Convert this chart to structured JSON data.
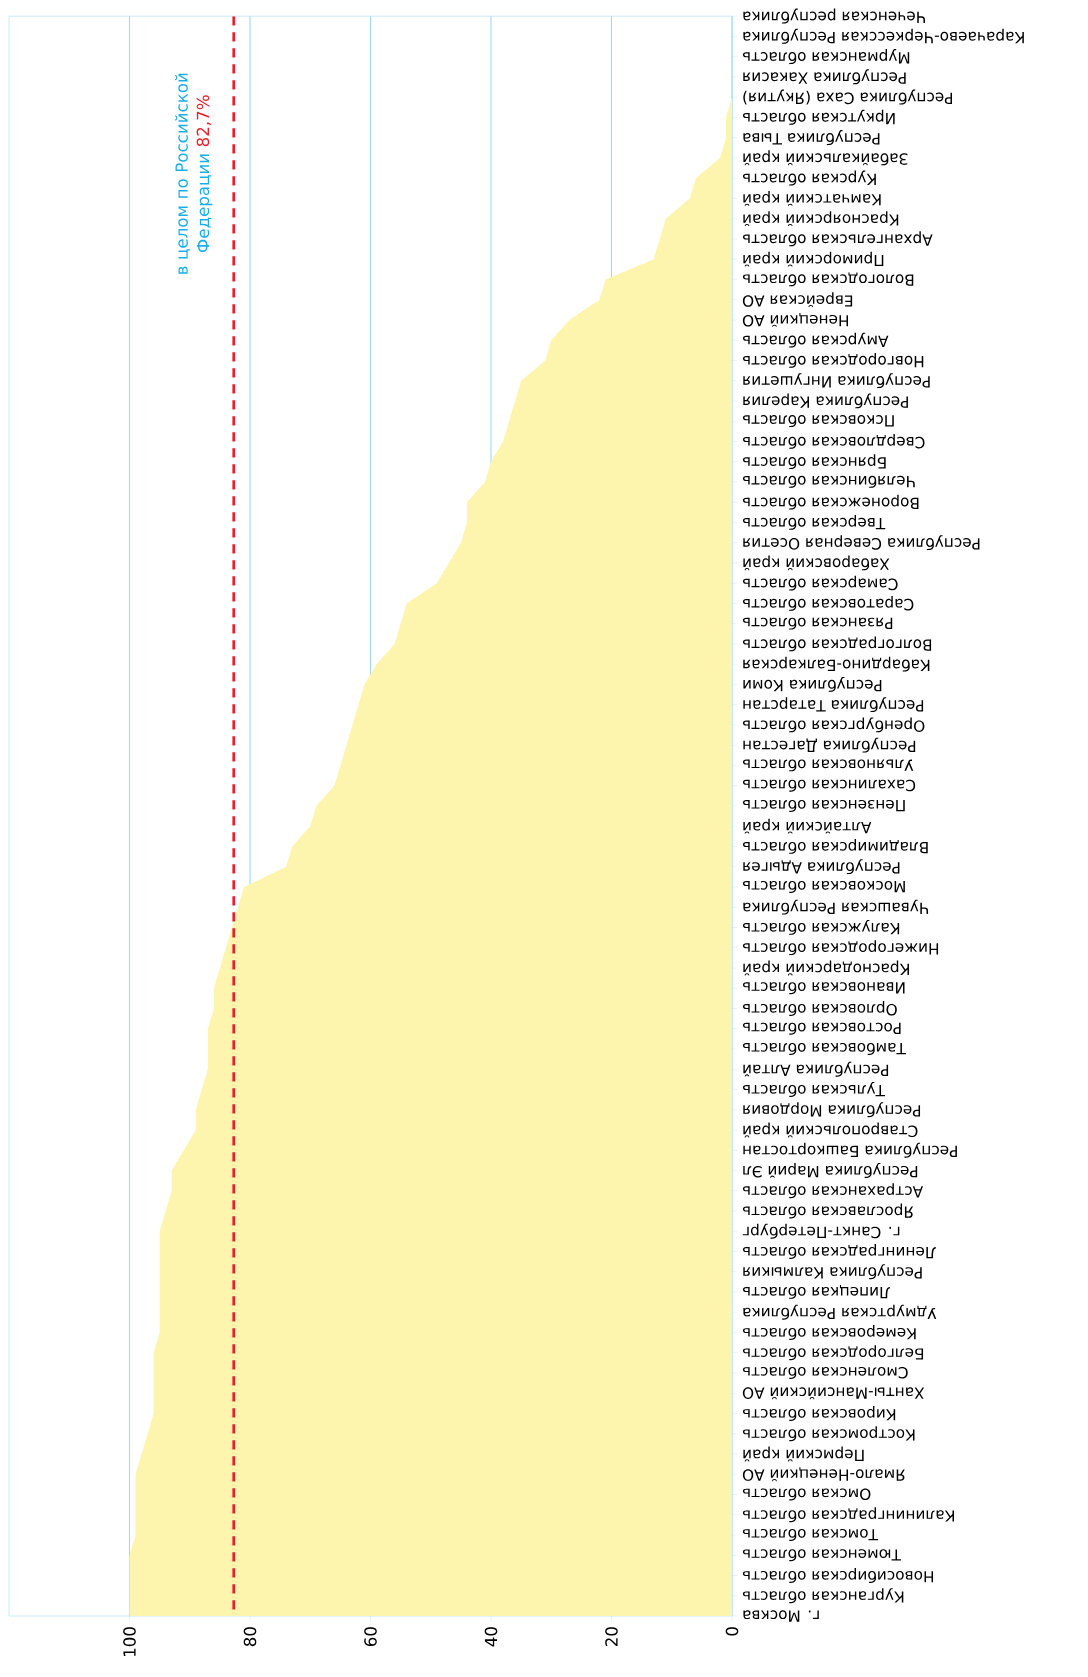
{
  "chart_data": {
    "type": "area",
    "orientation": "horizontal",
    "categories": [
      "Чеченская республика",
      "Карачаево-Черкесская Республика",
      "Мурманская область",
      "Республика Хакасия",
      "Республика Саха (Якутия)",
      "Иркутская область",
      "Республика Тыва",
      "Забайкальский край",
      "Курская область",
      "Камчатский край",
      "Красноярский край",
      "Архангельская область",
      "Приморский край",
      "Вологодская область",
      "Еврейская АО",
      "Ненецкий АО",
      "Амурская область",
      "Новгородская область",
      "Республика Ингушетия",
      "Республика Карелия",
      "Псковская область",
      "Свердловская область",
      "Брянская область",
      "Челябинская область",
      "Воронежская область",
      "Тверская область",
      "Республика Северная Осетия",
      "Хабаровский край",
      "Самарская область",
      "Саратовская область",
      "Рязанская область",
      "Волгоградская область",
      "Кабардино-Балкарская",
      "Республика Коми",
      "Республика Татарстан",
      "Оренбургская область",
      "Республика Дагестан",
      "Ульяновская область",
      "Сахалинская область",
      "Пензенская область",
      "Алтайский край",
      "Владимирская область",
      "Республика Адыгея",
      "Московская область",
      "Чувашская Республика",
      "Калужская область",
      "Нижегородская область",
      "Краснодарский край",
      "Ивановская область",
      "Орловская область",
      "Ростовская область",
      "Тамбовская область",
      "Республика Алтай",
      "Тульская область",
      "Республика Мордовия",
      "Ставропольский край",
      "Республика Башкортостан",
      "Республика Марий Эл",
      "Астраханская область",
      "Ярославская область",
      "г. Санкт-Петербург",
      "Ленинградская область",
      "Республика Калмыкия",
      "Липецкая область",
      "Удмуртская Республика",
      "Кемеровская область",
      "Белгородская область",
      "Смоленская область",
      "Ханты-Мансийский АО",
      "Кировская область",
      "Костромская область",
      "Пермский край",
      "Ямало-Ненецкий АО",
      "Омская область",
      "Калининградская область",
      "Томская область",
      "Тюменская область",
      "Новосибирская область",
      "Курганская область",
      "г. Москва"
    ],
    "values": [
      0,
      0,
      0,
      0,
      0,
      1,
      1,
      2,
      6,
      7,
      11,
      12,
      13,
      21,
      22,
      27,
      30,
      31,
      35,
      36,
      37,
      38,
      40,
      41,
      44,
      44,
      45,
      47,
      49,
      54,
      55,
      56,
      59,
      61,
      62,
      63,
      64,
      65,
      66,
      69,
      70,
      73,
      74,
      81,
      82,
      83,
      84,
      85,
      86,
      86,
      87,
      87,
      87,
      88,
      89,
      89,
      91,
      93,
      93,
      94,
      95,
      95,
      95,
      95,
      95,
      95,
      96,
      96,
      96,
      96,
      97,
      98,
      99,
      99,
      99,
      99,
      100,
      100,
      100,
      100
    ],
    "color": "#fdf5ad",
    "xlim": [
      120,
      0
    ],
    "xticks": [
      100,
      80,
      60,
      40,
      20,
      0
    ],
    "grid": "x",
    "ref_lines": [
      {
        "axis": "x",
        "value": 82.7,
        "label": "в целом по Российской Федерации",
        "color": "#e8202a",
        "line_style": "dashed"
      }
    ],
    "annotations": [
      "82,7%"
    ]
  }
}
